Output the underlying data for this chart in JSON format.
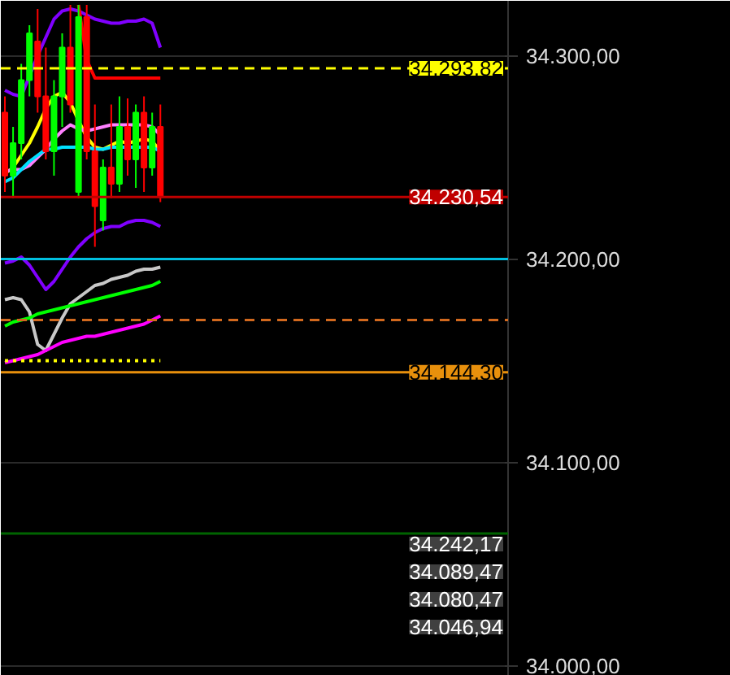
{
  "chart_data": {
    "type": "candlestick",
    "categories": [
      null,
      null,
      null,
      null,
      null,
      null,
      null,
      null,
      null,
      null,
      null,
      null,
      null,
      null,
      null,
      null,
      null,
      null,
      null,
      null,
      null,
      null,
      null,
      null,
      null,
      null,
      null,
      null,
      null,
      null,
      null,
      null,
      null,
      null,
      null,
      null,
      null,
      null,
      null,
      null,
      null,
      null,
      null,
      null,
      null,
      null,
      null,
      null,
      null,
      null,
      null,
      null,
      null,
      null,
      null,
      null,
      null,
      null,
      null,
      null,
      null,
      null
    ],
    "ohlc": [
      [
        34272,
        34280,
        34233,
        34241
      ],
      [
        34241,
        34265,
        34230,
        34257
      ],
      [
        34257,
        34296,
        34249,
        34288
      ],
      [
        34288,
        34315,
        34280,
        34311
      ],
      [
        34307,
        34323,
        34272,
        34280
      ],
      [
        34280,
        34304,
        34249,
        34253
      ],
      [
        34253,
        34288,
        34241,
        34280
      ],
      [
        34280,
        34311,
        34265,
        34304
      ],
      [
        34304,
        34325,
        34272,
        34276
      ],
      [
        34233,
        34325,
        34230,
        34319
      ],
      [
        34319,
        34325,
        34249,
        34253
      ],
      [
        34253,
        34276,
        34206,
        34226
      ],
      [
        34219,
        34249,
        34214,
        34245
      ],
      [
        34245,
        34276,
        34230,
        34237
      ],
      [
        34237,
        34280,
        34233,
        34265
      ],
      [
        34265,
        34279,
        34241,
        34249
      ],
      [
        34249,
        34276,
        34235,
        34272
      ],
      [
        34272,
        34280,
        34233,
        34245
      ],
      [
        34245,
        34272,
        34241,
        34265
      ],
      [
        34265,
        34276,
        34228,
        34230.54
      ],
      null,
      null,
      null,
      null,
      null,
      null,
      null,
      null,
      null,
      null,
      null,
      null,
      null,
      null,
      null,
      null,
      null,
      null,
      null,
      null,
      null,
      null,
      null,
      null,
      null,
      null,
      null,
      null,
      null,
      null,
      null,
      null,
      null,
      null,
      null,
      null,
      null,
      null,
      null,
      null,
      null,
      null
    ],
    "colors": [
      "#ff0000",
      "#00ff00",
      "#00ff00",
      "#00ff00",
      "#ff0000",
      "#ff0000",
      "#00ff00",
      "#00ff00",
      "#ff0000",
      "#00ff00",
      "#ff0000",
      "#ff0000",
      "#00ff00",
      "#ff0000",
      "#00ff00",
      "#ff0000",
      "#00ff00",
      "#ff0000",
      "#00ff00",
      "#ff0000",
      null,
      null,
      null,
      null,
      null,
      null,
      null,
      null,
      null,
      null,
      null,
      null,
      null,
      null,
      null,
      null,
      null,
      null,
      null,
      null,
      null,
      null,
      null,
      null,
      null,
      null,
      null,
      null,
      null,
      null,
      null,
      null,
      null,
      null,
      null,
      null,
      null,
      null,
      null,
      null,
      null,
      null
    ],
    "series": [
      {
        "type": "line",
        "color": "#8000ff",
        "values": [
          34283,
          34281,
          34280,
          34290,
          34300,
          34309,
          34318,
          34322,
          34323,
          34322,
          34320,
          34318,
          34317,
          34316,
          34316,
          34317,
          34317,
          34318,
          34316,
          34304,
          null,
          null,
          null,
          null,
          null,
          null,
          null,
          null,
          null,
          null,
          null,
          null,
          null,
          null,
          null,
          null,
          null,
          null,
          null,
          null,
          null,
          null,
          null,
          null,
          null,
          null,
          null,
          null,
          null,
          null,
          null,
          null,
          null,
          null,
          null,
          null,
          null,
          null,
          null,
          null,
          null,
          null
        ]
      },
      {
        "type": "line",
        "color": "#8000ff",
        "values": [
          34198,
          34199,
          34201,
          34197,
          34191,
          34185,
          34189,
          34195,
          34201,
          34206,
          34210,
          34213,
          34215,
          34216,
          34216,
          34218,
          34219,
          34219,
          34218,
          34216,
          null,
          null,
          null,
          null,
          null,
          null,
          null,
          null,
          null,
          null,
          null,
          null,
          null,
          null,
          null,
          null,
          null,
          null,
          null,
          null,
          null,
          null,
          null,
          null,
          null,
          null,
          null,
          null,
          null,
          null,
          null,
          null,
          null,
          null,
          null,
          null,
          null,
          null,
          null,
          null,
          null,
          null
        ]
      },
      {
        "type": "line",
        "color": "#ff0000",
        "values": [
          null,
          null,
          null,
          null,
          null,
          null,
          null,
          null,
          null,
          34325,
          34298,
          34289,
          34289,
          34289,
          34289,
          34289,
          34289,
          34289,
          34289,
          34289,
          null,
          null,
          null,
          null,
          null,
          null,
          null,
          null,
          null,
          null,
          null,
          null,
          null,
          null,
          null,
          null,
          null,
          null,
          null,
          null,
          null,
          null,
          null,
          null,
          null,
          null,
          null,
          null,
          null,
          null,
          null,
          null,
          null,
          null,
          null,
          null,
          null,
          null,
          null,
          null,
          null,
          null
        ]
      },
      {
        "type": "line",
        "color": "#ffff00",
        "values": [
          34242,
          34245,
          34251,
          34257,
          34265,
          34274,
          34280,
          34282,
          34277,
          34268,
          34260,
          34255,
          34254,
          34256,
          34258,
          34257,
          34258,
          34259,
          34258,
          34253,
          null,
          null,
          null,
          null,
          null,
          null,
          null,
          null,
          null,
          null,
          null,
          null,
          null,
          null,
          null,
          null,
          null,
          null,
          null,
          null,
          null,
          null,
          null,
          null,
          null,
          null,
          null,
          null,
          null,
          null,
          null,
          null,
          null,
          null,
          null,
          null,
          null,
          null,
          null,
          null,
          null,
          null
        ]
      },
      {
        "type": "line",
        "color": "#ff80ff",
        "values": [
          34243,
          34244,
          34244,
          34246,
          34250,
          34254,
          34259,
          34263,
          34266,
          34264,
          34263,
          34264,
          34265,
          34266,
          34266,
          34266,
          34266,
          34266,
          34265,
          34261,
          null,
          null,
          null,
          null,
          null,
          null,
          null,
          null,
          null,
          null,
          null,
          null,
          null,
          null,
          null,
          null,
          null,
          null,
          null,
          null,
          null,
          null,
          null,
          null,
          null,
          null,
          null,
          null,
          null,
          null,
          null,
          null,
          null,
          null,
          null,
          null,
          null,
          null,
          null,
          null,
          null,
          null
        ]
      },
      {
        "type": "line",
        "color": "#00e0ff",
        "values": [
          34238,
          34240,
          34244,
          34248,
          34251,
          34254,
          34254,
          34255,
          34255,
          34255,
          34255,
          34254,
          34254,
          34255,
          34255,
          34255,
          34255,
          34255,
          34255,
          34253,
          null,
          null,
          null,
          null,
          null,
          null,
          null,
          null,
          null,
          null,
          null,
          null,
          null,
          null,
          null,
          null,
          null,
          null,
          null,
          null,
          null,
          null,
          null,
          null,
          null,
          null,
          null,
          null,
          null,
          null,
          null,
          null,
          null,
          null,
          null,
          null,
          null,
          null,
          null,
          null,
          null,
          null
        ]
      },
      {
        "type": "line",
        "color": "#c8c8c8",
        "values": [
          34180,
          34181,
          34180,
          34174,
          34158,
          34155,
          34163,
          34171,
          34178,
          34181,
          34184,
          34187,
          34188,
          34190,
          34191,
          34192,
          34194,
          34195,
          34195,
          34196,
          null,
          null,
          null,
          null,
          null,
          null,
          null,
          null,
          null,
          null,
          null,
          null,
          null,
          null,
          null,
          null,
          null,
          null,
          null,
          null,
          null,
          null,
          null,
          null,
          null,
          null,
          null,
          null,
          null,
          null,
          null,
          null,
          null,
          null,
          null,
          null,
          null,
          null,
          null,
          null,
          null,
          null
        ]
      },
      {
        "type": "line",
        "color": "#00ff00",
        "values": [
          34167,
          34169,
          34170,
          34171,
          34173,
          34174,
          34175,
          34176,
          34177,
          34178,
          34179,
          34180,
          34181,
          34182,
          34183,
          34184,
          34185,
          34186,
          34187,
          34189,
          null,
          null,
          null,
          null,
          null,
          null,
          null,
          null,
          null,
          null,
          null,
          null,
          null,
          null,
          null,
          null,
          null,
          null,
          null,
          null,
          null,
          null,
          null,
          null,
          null,
          null,
          null,
          null,
          null,
          null,
          null,
          null,
          null,
          null,
          null,
          null,
          null,
          null,
          null,
          null,
          null,
          null
        ]
      },
      {
        "type": "line",
        "color": "#ff00ff",
        "values": [
          34149,
          34150,
          34151,
          34152,
          34153,
          34155,
          34157,
          34159,
          34160,
          34161,
          34162,
          34162,
          34163,
          34164,
          34165,
          34166,
          34167,
          34168,
          34170,
          34172,
          null,
          null,
          null,
          null,
          null,
          null,
          null,
          null,
          null,
          null,
          null,
          null,
          null,
          null,
          null,
          null,
          null,
          null,
          null,
          null,
          null,
          null,
          null,
          null,
          null,
          null,
          null,
          null,
          null,
          null,
          null,
          null,
          null,
          null,
          null,
          null,
          null,
          null,
          null,
          null,
          null,
          null
        ]
      },
      {
        "type": "line",
        "color": "#ffff00",
        "line_style": "dotted",
        "values": [
          34150,
          34150,
          34150,
          34150,
          34150,
          34150,
          34150,
          34150,
          34150,
          34150,
          34150,
          34150,
          34150,
          34150,
          34150,
          34150,
          34150,
          34150,
          34150,
          34150,
          null,
          null,
          null,
          null,
          null,
          null,
          null,
          null,
          null,
          null,
          null,
          null,
          null,
          null,
          null,
          null,
          null,
          null,
          null,
          null,
          null,
          null,
          null,
          null,
          null,
          null,
          null,
          null,
          null,
          null,
          null,
          null,
          null,
          null,
          null,
          null,
          null,
          null,
          null,
          null,
          null,
          null
        ]
      }
    ],
    "ylim": [
      33995,
      34327
    ],
    "yticks": [
      {
        "value": 34000,
        "label": "34.000,00"
      },
      {
        "value": 34100,
        "label": "34.100,00"
      },
      {
        "value": 34200,
        "label": "34.200,00"
      },
      {
        "value": 34300,
        "label": "34.300,00"
      }
    ],
    "tick_labels": "y",
    "grid": "y",
    "ref_lines": [
      {
        "axis": "y",
        "value": 34293.82,
        "label": "34.293,82",
        "color": "#ffff00",
        "line_style": "dashed"
      },
      {
        "axis": "y",
        "value": 34230.54,
        "label": "34.230,54",
        "color": "#c00000",
        "line_style": "solid"
      },
      {
        "axis": "y",
        "value": 34200,
        "color": "#00c0e0",
        "line_style": "solid"
      },
      {
        "axis": "y",
        "value": 34170,
        "color": "#d2691e",
        "line_style": "dashed"
      },
      {
        "axis": "y",
        "value": 34144.3,
        "label": "34.144,30",
        "color": "#e8900c",
        "line_style": "solid"
      },
      {
        "axis": "y",
        "value": 34065,
        "color": "#006400",
        "line_style": "solid"
      }
    ],
    "annotations": [
      "34.242,17",
      "34.089,47",
      "34.080,47",
      "34.046,94"
    ]
  }
}
